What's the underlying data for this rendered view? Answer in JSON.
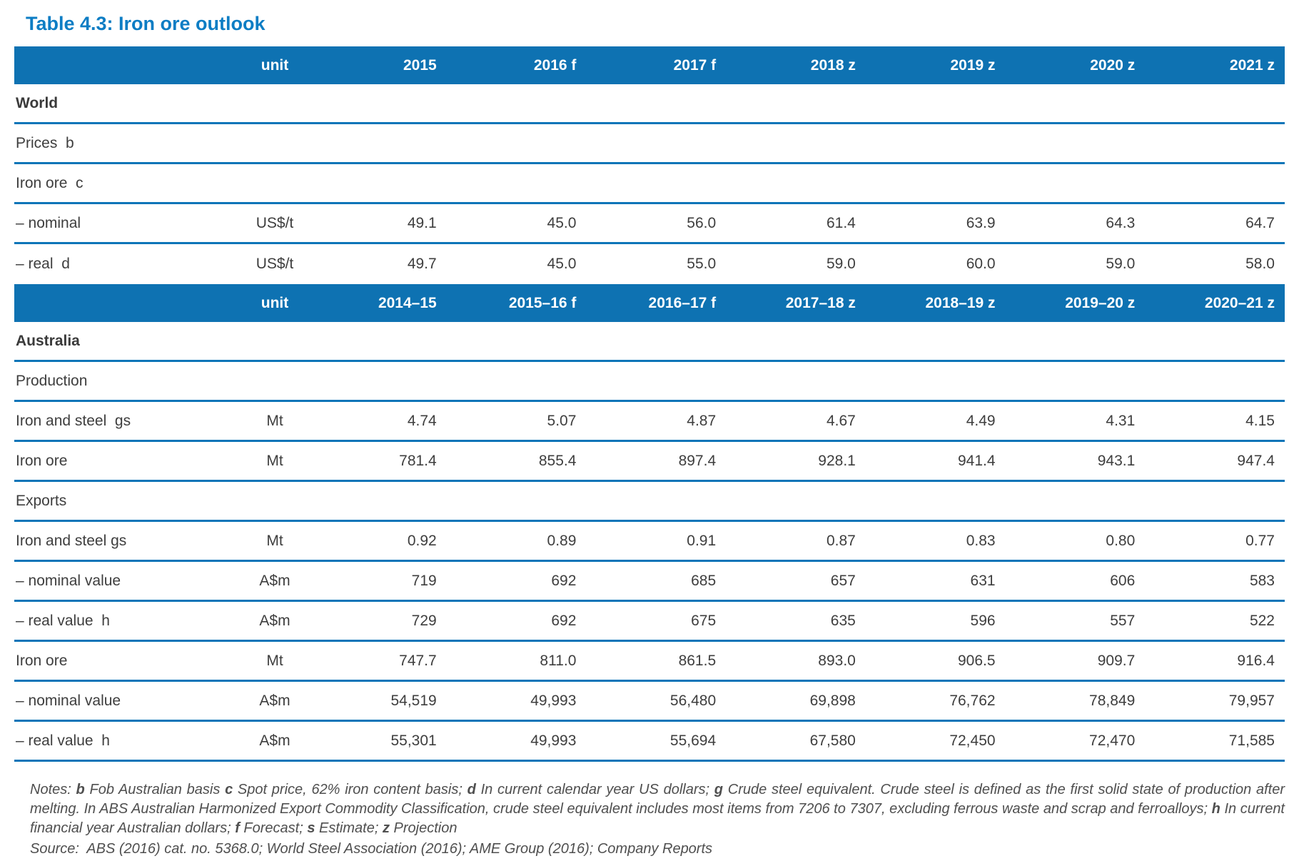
{
  "title": "Table 4.3: Iron ore outlook",
  "colors": {
    "header_band": "#0e72b2",
    "title_blue": "#0d7dc4",
    "row_line_blue": "#0c75b8",
    "body_text": "#3e3e3e",
    "notes_text": "#4f4f4f"
  },
  "tables": [
    {
      "header": {
        "unit": "unit",
        "years": [
          "2015",
          "2016 f",
          "2017 f",
          "2018 z",
          "2019 z",
          "2020 z",
          "2021 z"
        ]
      },
      "rows": [
        {
          "label": "World",
          "style": "section",
          "unit": "",
          "values": []
        },
        {
          "label": "Prices  b",
          "style": "plain",
          "unit": "",
          "values": []
        },
        {
          "label": "Iron ore  c",
          "style": "plain",
          "unit": "",
          "values": []
        },
        {
          "label": "– nominal",
          "style": "plain",
          "unit": "US$/t",
          "values": [
            "49.1",
            "45.0",
            "56.0",
            "61.4",
            "63.9",
            "64.3",
            "64.7"
          ]
        },
        {
          "label": "– real  d",
          "style": "plain",
          "unit": "US$/t",
          "values": [
            "49.7",
            "45.0",
            "55.0",
            "59.0",
            "60.0",
            "59.0",
            "58.0"
          ]
        }
      ]
    },
    {
      "header": {
        "unit": "unit",
        "years": [
          "2014–15",
          "2015–16 f",
          "2016–17 f",
          "2017–18 z",
          "2018–19 z",
          "2019–20 z",
          "2020–21 z"
        ]
      },
      "rows": [
        {
          "label": "Australia",
          "style": "section",
          "unit": "",
          "values": []
        },
        {
          "label": "Production",
          "style": "plain",
          "unit": "",
          "values": []
        },
        {
          "label": "Iron and steel  gs",
          "style": "plain",
          "unit": "Mt",
          "values": [
            "4.74",
            "5.07",
            "4.87",
            "4.67",
            "4.49",
            "4.31",
            "4.15"
          ]
        },
        {
          "label": "Iron ore",
          "style": "plain",
          "unit": "Mt",
          "values": [
            "781.4",
            "855.4",
            "897.4",
            "928.1",
            "941.4",
            "943.1",
            "947.4"
          ]
        },
        {
          "label": "Exports",
          "style": "plain",
          "unit": "",
          "values": []
        },
        {
          "label": "Iron and steel gs",
          "style": "plain",
          "unit": "Mt",
          "values": [
            "0.92",
            "0.89",
            "0.91",
            "0.87",
            "0.83",
            "0.80",
            "0.77"
          ]
        },
        {
          "label": "– nominal value",
          "style": "plain",
          "unit": "A$m",
          "values": [
            "719",
            "692",
            "685",
            "657",
            "631",
            "606",
            "583"
          ]
        },
        {
          "label": "– real value  h",
          "style": "plain",
          "unit": "A$m",
          "values": [
            "729",
            "692",
            "675",
            "635",
            "596",
            "557",
            "522"
          ]
        },
        {
          "label": "Iron ore",
          "style": "plain",
          "unit": "Mt",
          "values": [
            "747.7",
            "811.0",
            "861.5",
            "893.0",
            "906.5",
            "909.7",
            "916.4"
          ]
        },
        {
          "label": "– nominal value",
          "style": "plain",
          "unit": "A$m",
          "values": [
            "54,519",
            "49,993",
            "56,480",
            "69,898",
            "76,762",
            "78,849",
            "79,957"
          ]
        },
        {
          "label": "– real value  h",
          "style": "plain",
          "unit": "A$m",
          "values": [
            "55,301",
            "49,993",
            "55,694",
            "67,580",
            "72,450",
            "72,470",
            "71,585"
          ]
        }
      ]
    }
  ],
  "notes": {
    "segments": [
      {
        "t": "Notes: ",
        "b": false
      },
      {
        "t": "b",
        "b": true
      },
      {
        "t": " Fob Australian basis ",
        "b": false
      },
      {
        "t": "c",
        "b": true
      },
      {
        "t": " Spot price, 62% iron content basis; ",
        "b": false
      },
      {
        "t": "d",
        "b": true
      },
      {
        "t": " In current calendar year US dollars; ",
        "b": false
      },
      {
        "t": "g",
        "b": true
      },
      {
        "t": " Crude steel equivalent. Crude steel is defined as the first solid state of production after melting. In ABS Australian Harmonized Export Commodity Classification, crude steel equivalent includes most items from 7206 to 7307, excluding ferrous waste and scrap and ferroalloys; ",
        "b": false
      },
      {
        "t": "h",
        "b": true
      },
      {
        "t": " In current financial year Australian dollars; ",
        "b": false
      },
      {
        "t": "f",
        "b": true
      },
      {
        "t": " Forecast; ",
        "b": false
      },
      {
        "t": "s",
        "b": true
      },
      {
        "t": " Estimate; ",
        "b": false
      },
      {
        "t": "z",
        "b": true
      },
      {
        "t": " Projection",
        "b": false
      }
    ],
    "source": "Source:  ABS (2016) cat. no. 5368.0; World Steel Association (2016); AME Group (2016); Company Reports"
  }
}
